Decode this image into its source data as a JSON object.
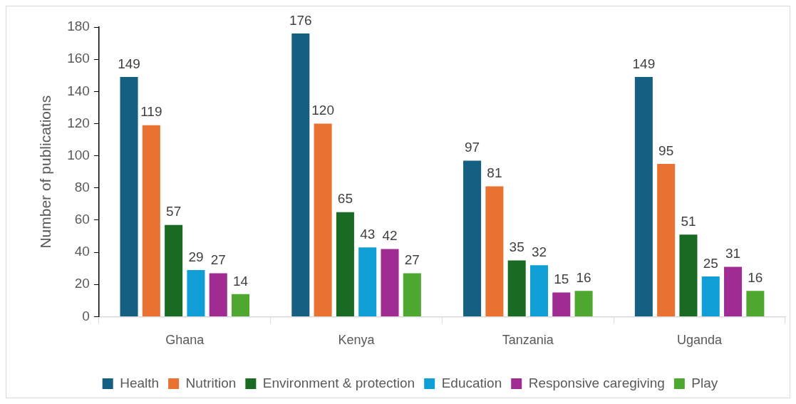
{
  "chart_data": {
    "type": "bar",
    "ylabel": "Number of publications",
    "categories": [
      "Ghana",
      "Kenya",
      "Tanzania",
      "Uganda"
    ],
    "series": [
      {
        "name": "Health",
        "color": "#156082",
        "values": [
          149,
          176,
          97,
          149
        ]
      },
      {
        "name": "Nutrition",
        "color": "#e97132",
        "values": [
          119,
          120,
          81,
          95
        ]
      },
      {
        "name": "Environment & protection",
        "color": "#196b24",
        "values": [
          57,
          65,
          35,
          51
        ]
      },
      {
        "name": "Education",
        "color": "#0f9ed5",
        "values": [
          29,
          43,
          32,
          25
        ]
      },
      {
        "name": "Responsive caregiving",
        "color": "#a02b93",
        "values": [
          27,
          42,
          15,
          31
        ]
      },
      {
        "name": "Play",
        "color": "#4ea72e",
        "values": [
          14,
          27,
          16,
          16
        ]
      }
    ],
    "ylim": [
      0,
      180
    ],
    "yticks": [
      0,
      20,
      40,
      60,
      80,
      100,
      120,
      140,
      160,
      180
    ],
    "data_labels": true,
    "grid": false,
    "legend": "bottom"
  }
}
